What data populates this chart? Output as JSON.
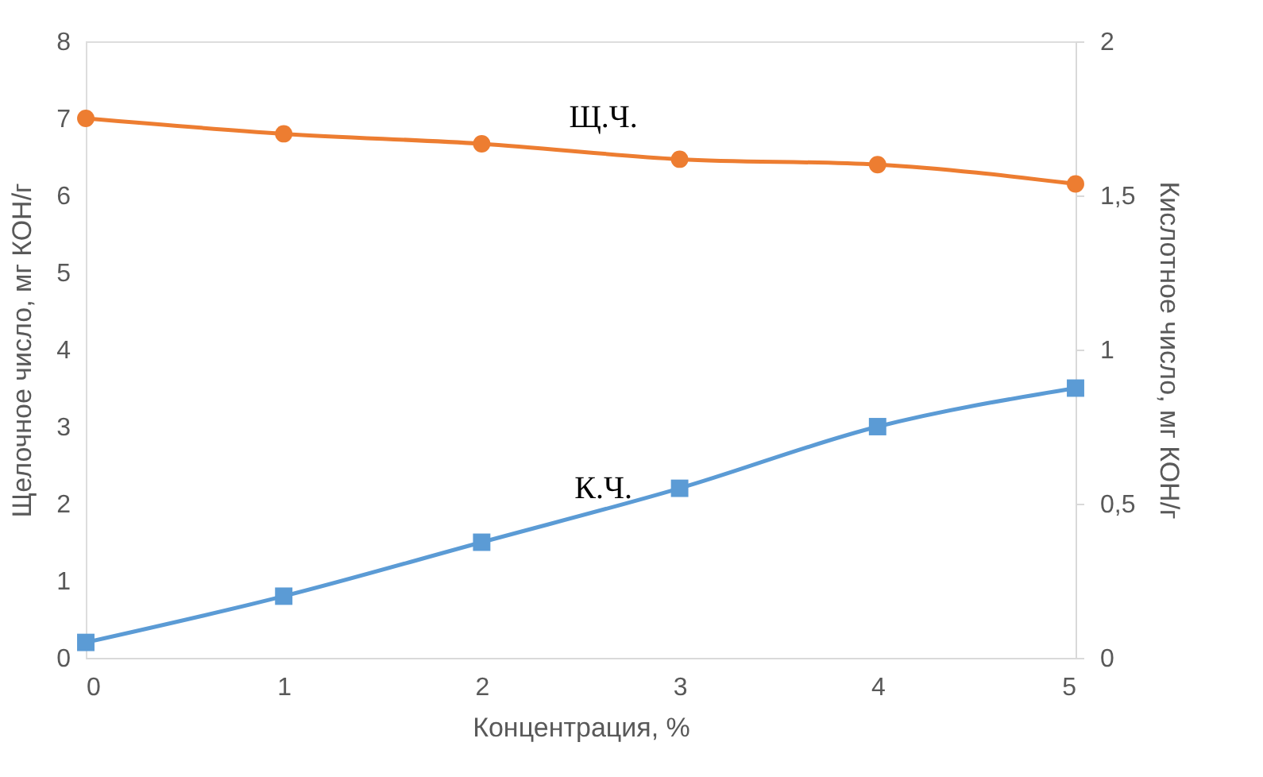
{
  "chart_data": {
    "type": "line",
    "xlabel": "Концентрация, %",
    "ylabel": "Щелочное число, мг КОН/г",
    "y2label": "Кислотное число, мг КОН/г",
    "x": [
      0,
      1,
      2,
      3,
      4,
      5
    ],
    "series": [
      {
        "name": "Щ.Ч.",
        "color": "#ed7d31",
        "values": [
          7.0,
          6.8,
          6.67,
          6.47,
          6.4,
          6.15
        ],
        "marker": "circle"
      },
      {
        "name": "К.Ч.",
        "color": "#5b9bd5",
        "values": [
          0.05,
          0.2,
          0.375,
          0.55,
          0.75,
          0.875
        ],
        "axis": "y2",
        "marker": "square"
      }
    ],
    "xlim": [
      0,
      5
    ],
    "xticks": [
      0,
      1,
      2,
      3,
      4,
      5
    ],
    "ylim": [
      0,
      8
    ],
    "yticks": [
      0,
      1,
      2,
      3,
      4,
      5,
      6,
      7,
      8
    ],
    "y2lim": [
      0,
      2
    ],
    "y2ticks": [
      0,
      {
        "value": 0.5,
        "label": "0,5"
      },
      1,
      {
        "value": 1.5,
        "label": "1,5"
      },
      2
    ],
    "grid": false,
    "line_style": "solid"
  }
}
